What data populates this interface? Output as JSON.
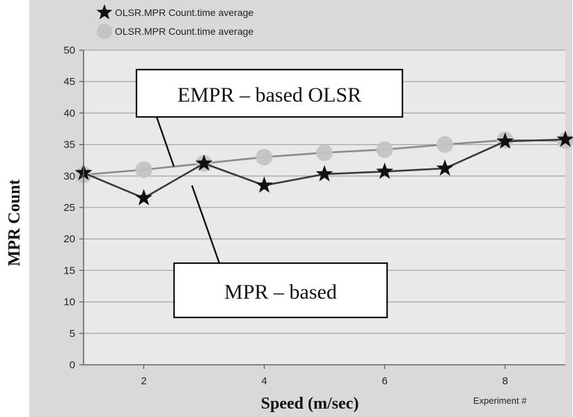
{
  "chart_data": {
    "type": "line",
    "xlabel": "Speed (m/sec)",
    "ylabel": "MPR Count",
    "corner_label": "Experiment #",
    "xlim": [
      1,
      9
    ],
    "ylim": [
      0,
      50
    ],
    "x_ticks": [
      2,
      4,
      6,
      8
    ],
    "y_ticks": [
      0,
      5,
      10,
      15,
      20,
      25,
      30,
      35,
      40,
      45,
      50
    ],
    "grid": true,
    "legend_position": "top-left",
    "series": [
      {
        "name": "OLSR.MPR Count.time average",
        "marker": "star",
        "color": "#111111",
        "x": [
          1,
          2,
          3,
          4,
          5,
          6,
          7,
          8,
          9
        ],
        "y": [
          30.5,
          26.5,
          32.0,
          28.5,
          30.3,
          30.7,
          31.2,
          35.5,
          35.8
        ]
      },
      {
        "name": "OLSR.MPR Count.time average",
        "marker": "circle",
        "color": "#c4c4c4",
        "x": [
          1,
          2,
          3,
          4,
          5,
          6,
          7,
          8,
          9
        ],
        "y": [
          30.2,
          31.0,
          32.0,
          33.0,
          33.7,
          34.2,
          35.0,
          35.7,
          35.6
        ]
      }
    ],
    "annotations": [
      {
        "text": "EMPR – based OLSR",
        "points_to": {
          "x": 2.5,
          "y": 31.5
        }
      },
      {
        "text": "MPR – based",
        "points_to": {
          "x": 2.8,
          "y": 28.5
        }
      }
    ]
  }
}
